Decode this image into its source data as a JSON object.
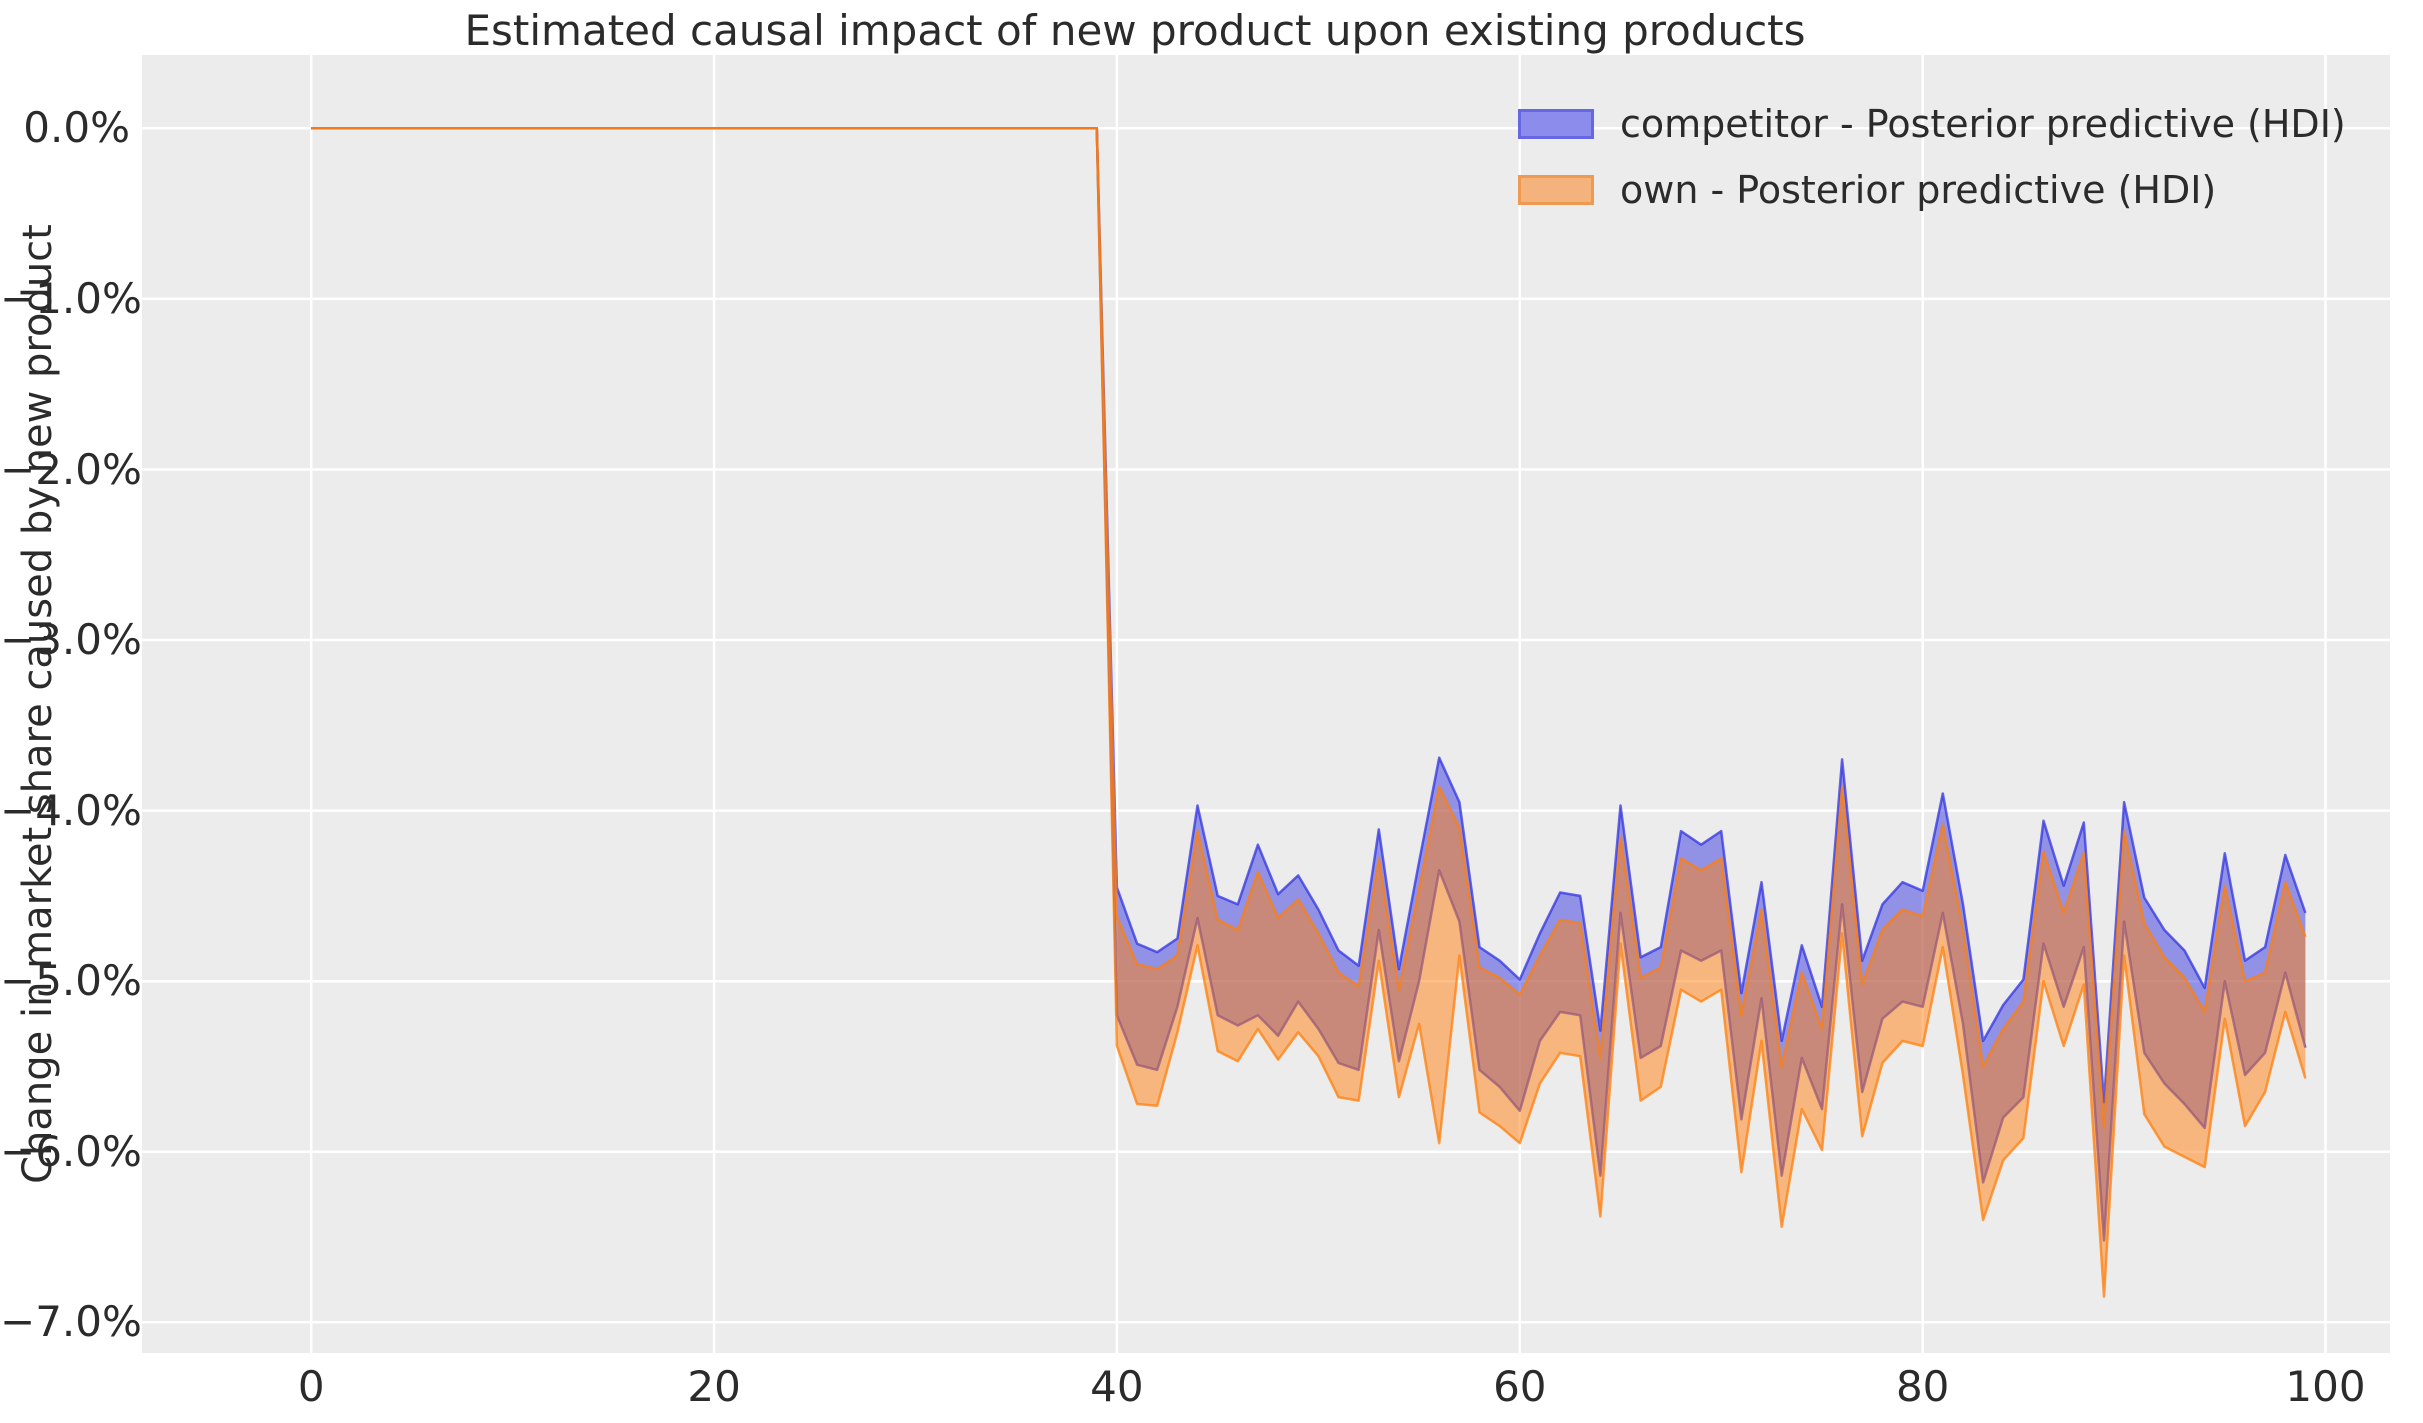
{
  "chart_data": {
    "type": "area",
    "title": "Estimated causal impact of new product upon existing products",
    "ylabel": "Change in market share caused by new product",
    "xlabel": "",
    "plot_bg": "#ececec",
    "grid_color": "#ffffff",
    "grid": true,
    "legend_position": "upper right",
    "xlim": [
      -8.4,
      103.2
    ],
    "ylim": [
      -7.18,
      0.43
    ],
    "xticks": [
      0,
      20,
      40,
      60,
      80,
      100
    ],
    "yticks": [
      0,
      -1,
      -2,
      -3,
      -4,
      -5,
      -6,
      -7
    ],
    "ytick_suffix": "%",
    "x": [
      0,
      1,
      2,
      3,
      4,
      5,
      6,
      7,
      8,
      9,
      10,
      11,
      12,
      13,
      14,
      15,
      16,
      17,
      18,
      19,
      20,
      21,
      22,
      23,
      24,
      25,
      26,
      27,
      28,
      29,
      30,
      31,
      32,
      33,
      34,
      35,
      36,
      37,
      38,
      39,
      40,
      41,
      42,
      43,
      44,
      45,
      46,
      47,
      48,
      49,
      50,
      51,
      52,
      53,
      54,
      55,
      56,
      57,
      58,
      59,
      60,
      61,
      62,
      63,
      64,
      65,
      66,
      67,
      68,
      69,
      70,
      71,
      72,
      73,
      74,
      75,
      76,
      77,
      78,
      79,
      80,
      81,
      82,
      83,
      84,
      85,
      86,
      87,
      88,
      89,
      90,
      91,
      92,
      93,
      94,
      95,
      96,
      97,
      98,
      99
    ],
    "units": "percent",
    "series": [
      {
        "name": "competitor - Posterior predictive (HDI)",
        "color": "#2d2fe0",
        "fill_opacity": 0.48,
        "stroke_opacity": 0.72,
        "upper": [
          0,
          0,
          0,
          0,
          0,
          0,
          0,
          0,
          0,
          0,
          0,
          0,
          0,
          0,
          0,
          0,
          0,
          0,
          0,
          0,
          0,
          0,
          0,
          0,
          0,
          0,
          0,
          0,
          0,
          0,
          0,
          0,
          0,
          0,
          0,
          0,
          0,
          0,
          0,
          0,
          -4.45,
          -4.78,
          -4.83,
          -4.75,
          -3.97,
          -4.5,
          -4.55,
          -4.2,
          -4.49,
          -4.38,
          -4.58,
          -4.82,
          -4.91,
          -4.11,
          -4.93,
          -4.3,
          -3.69,
          -3.95,
          -4.8,
          -4.88,
          -4.99,
          -4.72,
          -4.48,
          -4.5,
          -5.29,
          -3.97,
          -4.86,
          -4.8,
          -4.12,
          -4.2,
          -4.12,
          -5.07,
          -4.42,
          -5.35,
          -4.79,
          -5.15,
          -3.7,
          -4.88,
          -4.55,
          -4.42,
          -4.47,
          -3.9,
          -4.55,
          -5.35,
          -5.14,
          -4.99,
          -4.06,
          -4.44,
          -4.07,
          -5.71,
          -3.95,
          -4.51,
          -4.7,
          -4.82,
          -5.04,
          -4.25,
          -4.88,
          -4.8,
          -4.26,
          -4.6
        ],
        "lower": [
          0,
          0,
          0,
          0,
          0,
          0,
          0,
          0,
          0,
          0,
          0,
          0,
          0,
          0,
          0,
          0,
          0,
          0,
          0,
          0,
          0,
          0,
          0,
          0,
          0,
          0,
          0,
          0,
          0,
          0,
          0,
          0,
          0,
          0,
          0,
          0,
          0,
          0,
          0,
          0,
          -5.2,
          -5.49,
          -5.52,
          -5.15,
          -4.63,
          -5.2,
          -5.26,
          -5.2,
          -5.32,
          -5.12,
          -5.28,
          -5.48,
          -5.52,
          -4.7,
          -5.47,
          -5.0,
          -4.35,
          -4.65,
          -5.52,
          -5.62,
          -5.76,
          -5.35,
          -5.18,
          -5.2,
          -6.14,
          -4.6,
          -5.45,
          -5.38,
          -4.82,
          -4.88,
          -4.82,
          -5.81,
          -5.1,
          -6.14,
          -5.45,
          -5.75,
          -4.55,
          -5.65,
          -5.22,
          -5.12,
          -5.15,
          -4.6,
          -5.25,
          -6.18,
          -5.8,
          -5.68,
          -4.78,
          -5.15,
          -4.8,
          -6.52,
          -4.65,
          -5.42,
          -5.6,
          -5.72,
          -5.86,
          -5.0,
          -5.55,
          -5.42,
          -4.95,
          -5.39
        ]
      },
      {
        "name": "own - Posterior predictive (HDI)",
        "color": "#ff7f0e",
        "fill_opacity": 0.5,
        "stroke_opacity": 0.75,
        "upper": [
          0,
          0,
          0,
          0,
          0,
          0,
          0,
          0,
          0,
          0,
          0,
          0,
          0,
          0,
          0,
          0,
          0,
          0,
          0,
          0,
          0,
          0,
          0,
          0,
          0,
          0,
          0,
          0,
          0,
          0,
          0,
          0,
          0,
          0,
          0,
          0,
          0,
          0,
          0,
          0,
          -4.62,
          -4.9,
          -4.93,
          -4.85,
          -4.12,
          -4.64,
          -4.7,
          -4.36,
          -4.63,
          -4.52,
          -4.72,
          -4.95,
          -5.03,
          -4.28,
          -5.05,
          -4.46,
          -3.86,
          -4.1,
          -4.92,
          -4.98,
          -5.08,
          -4.85,
          -4.64,
          -4.66,
          -5.45,
          -4.15,
          -4.98,
          -4.92,
          -4.28,
          -4.35,
          -4.28,
          -5.2,
          -4.58,
          -5.5,
          -4.95,
          -5.28,
          -3.86,
          -5.02,
          -4.7,
          -4.58,
          -4.62,
          -4.08,
          -4.7,
          -5.5,
          -5.28,
          -5.12,
          -4.24,
          -4.6,
          -4.25,
          -5.85,
          -4.12,
          -4.66,
          -4.86,
          -4.98,
          -5.18,
          -4.44,
          -5.0,
          -4.95,
          -4.42,
          -4.74
        ],
        "lower": [
          0,
          0,
          0,
          0,
          0,
          0,
          0,
          0,
          0,
          0,
          0,
          0,
          0,
          0,
          0,
          0,
          0,
          0,
          0,
          0,
          0,
          0,
          0,
          0,
          0,
          0,
          0,
          0,
          0,
          0,
          0,
          0,
          0,
          0,
          0,
          0,
          0,
          0,
          0,
          0,
          -5.38,
          -5.72,
          -5.73,
          -5.3,
          -4.79,
          -5.41,
          -5.47,
          -5.28,
          -5.46,
          -5.3,
          -5.44,
          -5.68,
          -5.7,
          -4.88,
          -5.68,
          -5.25,
          -5.95,
          -4.85,
          -5.77,
          -5.85,
          -5.95,
          -5.6,
          -5.42,
          -5.44,
          -6.38,
          -4.78,
          -5.7,
          -5.62,
          -5.05,
          -5.12,
          -5.05,
          -6.12,
          -5.35,
          -6.44,
          -5.75,
          -5.99,
          -4.72,
          -5.91,
          -5.48,
          -5.35,
          -5.38,
          -4.8,
          -5.55,
          -6.4,
          -6.05,
          -5.92,
          -5.0,
          -5.38,
          -5.02,
          -6.85,
          -4.85,
          -5.78,
          -5.97,
          -6.03,
          -6.09,
          -5.22,
          -5.85,
          -5.65,
          -5.18,
          -5.57
        ]
      }
    ]
  },
  "legend": {
    "items": [
      {
        "fill": "#8b8ceb",
        "border": "#6567e3"
      },
      {
        "fill": "#f4b27c",
        "border": "#ee9b51"
      }
    ]
  }
}
